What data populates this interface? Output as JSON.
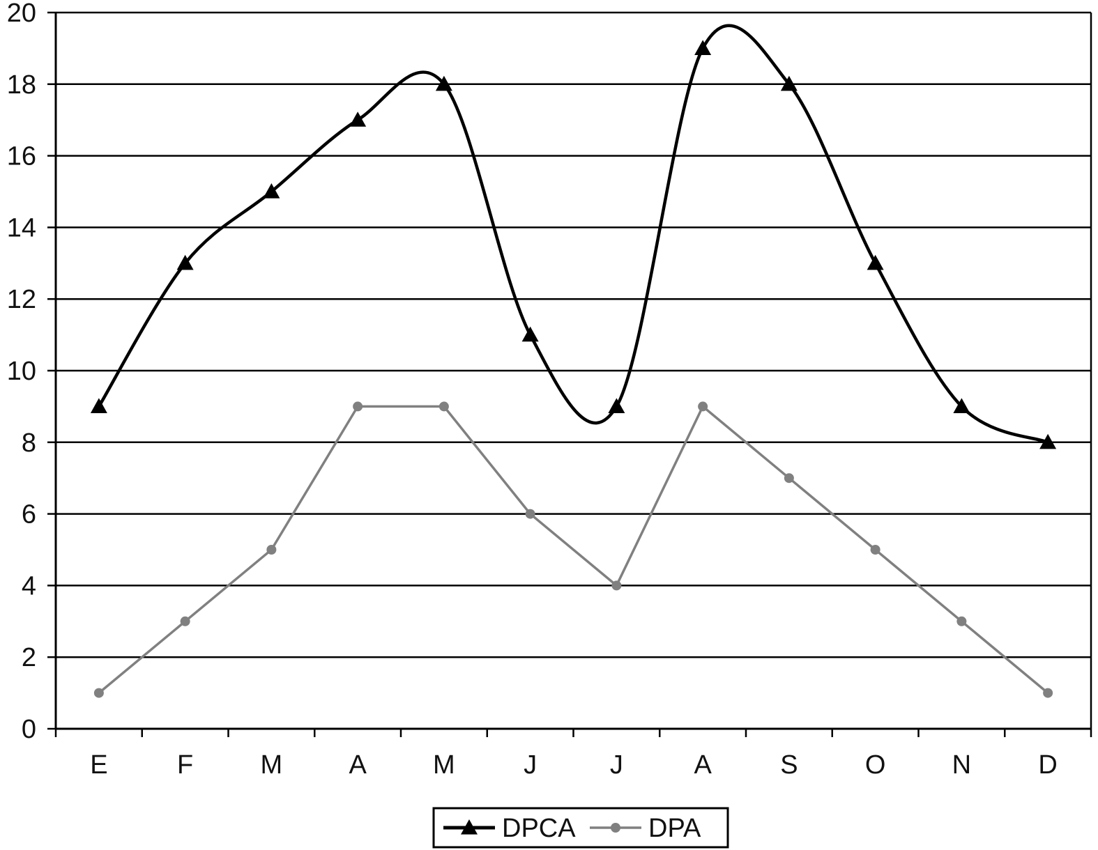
{
  "chart_data": {
    "type": "line",
    "categories": [
      "E",
      "F",
      "M",
      "A",
      "M",
      "J",
      "J",
      "A",
      "S",
      "O",
      "N",
      "D"
    ],
    "series": [
      {
        "name": "DPCA",
        "values": [
          9,
          13,
          15,
          17,
          18,
          11,
          9,
          19,
          18,
          13,
          9,
          8
        ],
        "color": "#000000",
        "marker": "triangle",
        "smooth": true
      },
      {
        "name": "DPA",
        "values": [
          1,
          3,
          5,
          9,
          9,
          6,
          4,
          9,
          7,
          5,
          3,
          1
        ],
        "color": "#808080",
        "marker": "circle",
        "smooth": false
      }
    ],
    "ylim": [
      0,
      20
    ],
    "yticks": [
      0,
      2,
      4,
      6,
      8,
      10,
      12,
      14,
      16,
      18,
      20
    ],
    "grid": true,
    "legend": "bottom-center",
    "title": "",
    "xlabel": "",
    "ylabel": ""
  }
}
